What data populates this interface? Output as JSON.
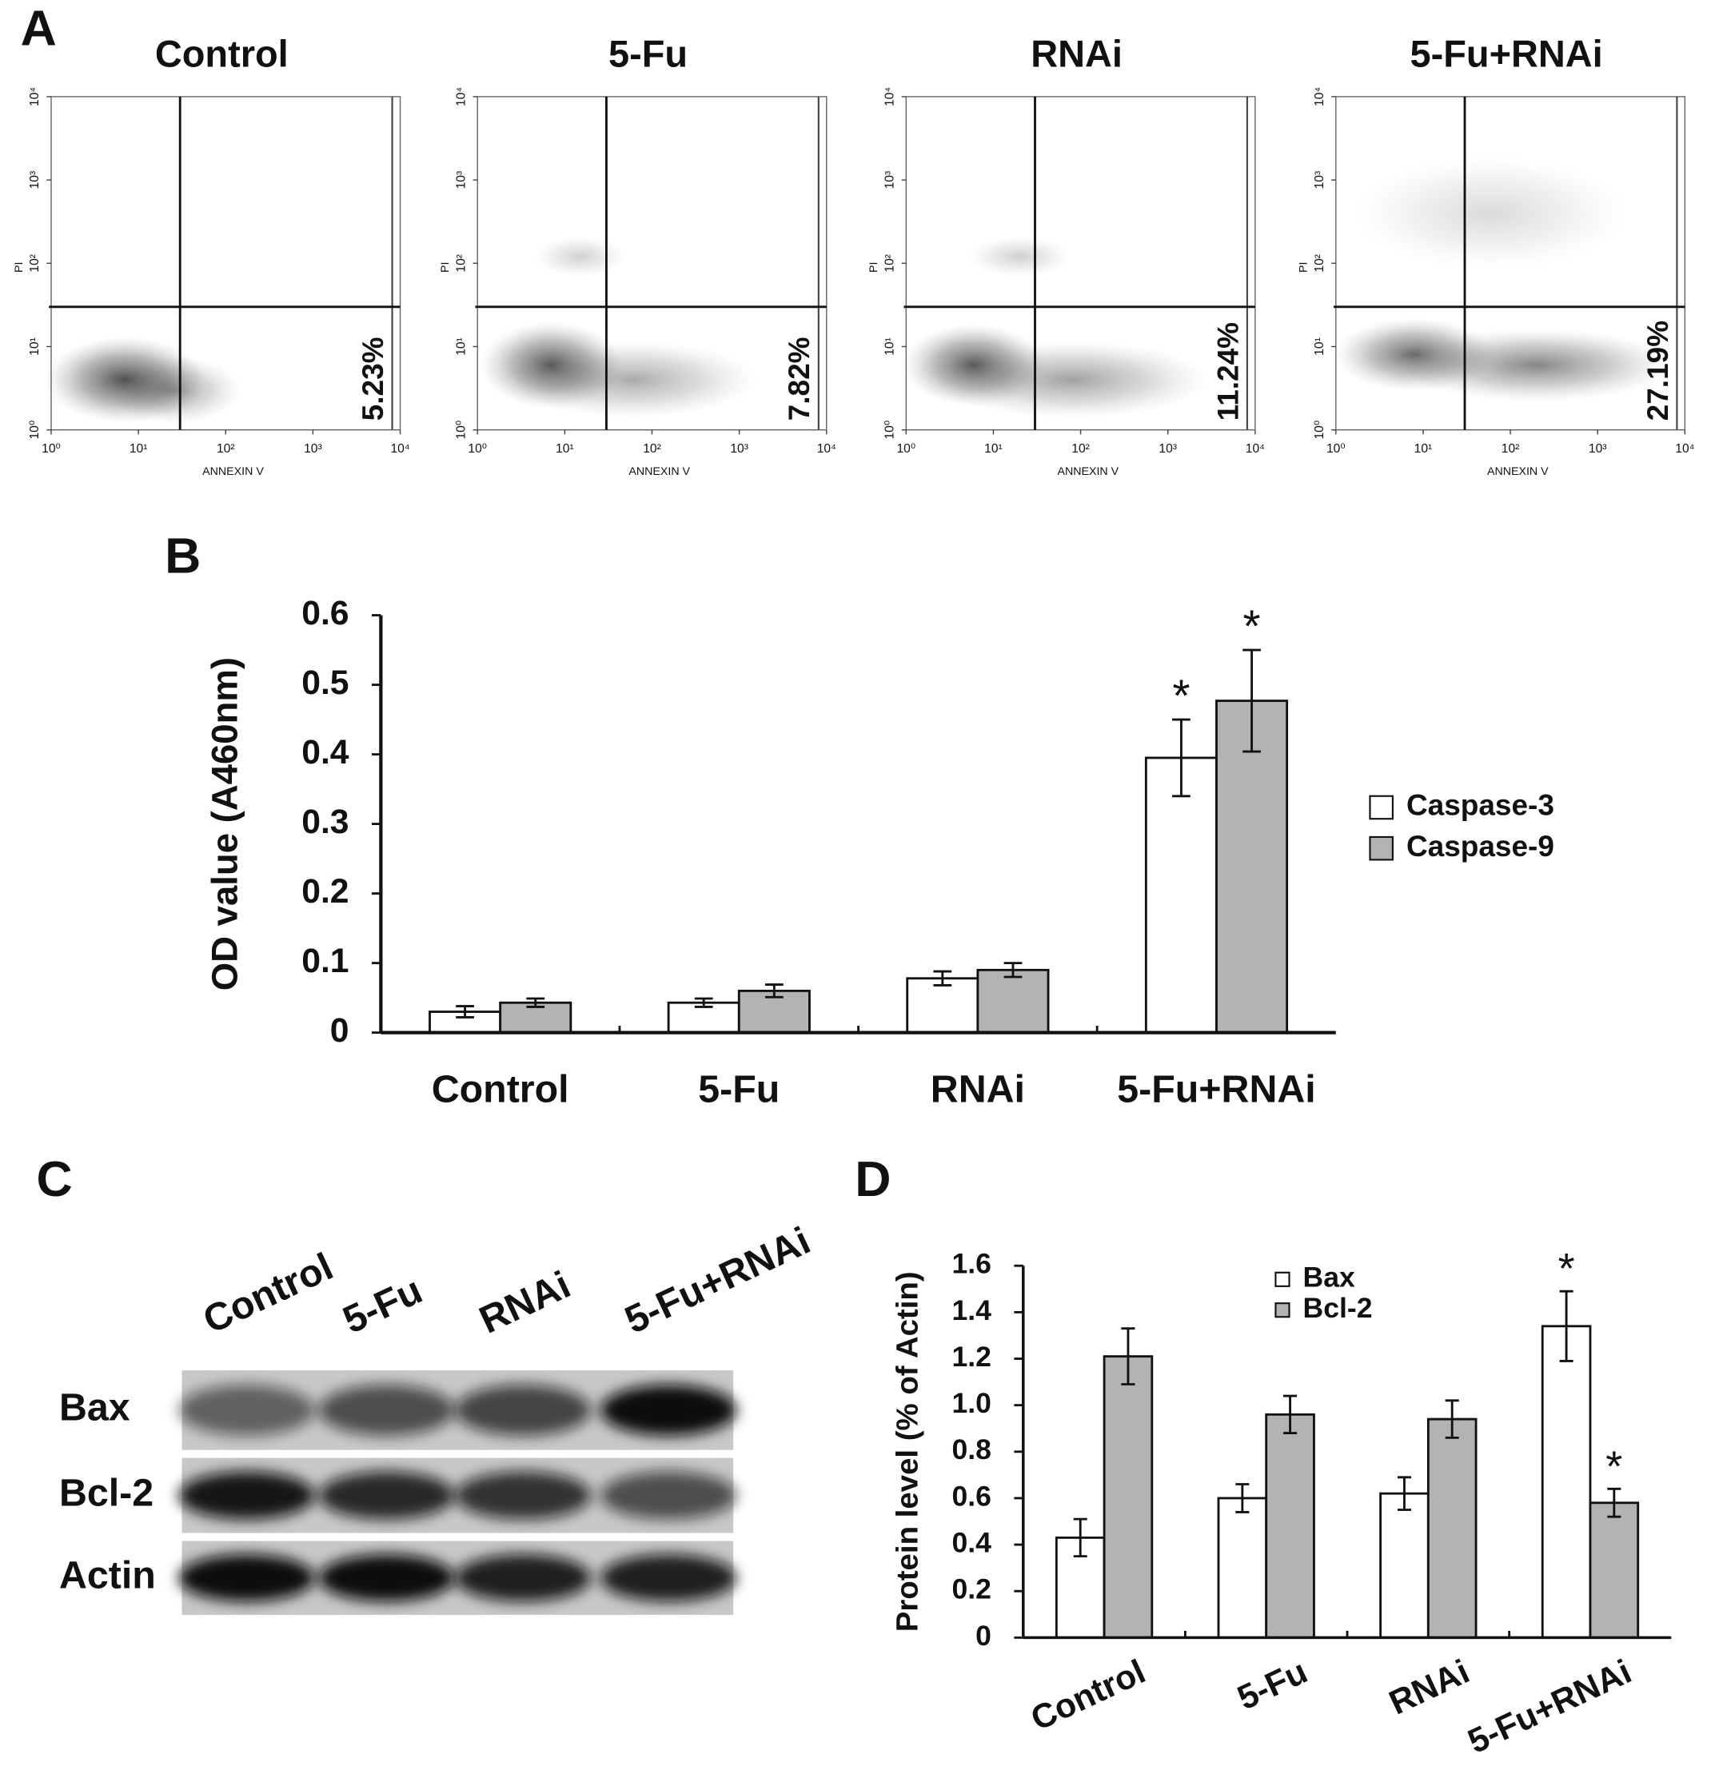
{
  "panel_labels": [
    "A",
    "B",
    "C",
    "D"
  ],
  "chart_data": [
    {
      "type": "quadrant-plot",
      "title": "Control",
      "xlabel": "ANNEXIN V",
      "ylabel": "PI",
      "log_scale": true,
      "xlim": [
        1,
        10000
      ],
      "ylim": [
        1,
        10000
      ],
      "xticks": [
        {
          "value": 1,
          "label": "10⁰"
        },
        {
          "value": 10,
          "label": "10¹"
        },
        {
          "value": 100,
          "label": "10²"
        },
        {
          "value": 1000,
          "label": "10³"
        },
        {
          "value": 10000,
          "label": "10⁴"
        }
      ],
      "yticks": [
        {
          "value": 1,
          "label": "10⁰"
        },
        {
          "value": 10,
          "label": "10¹"
        },
        {
          "value": 100,
          "label": "10²"
        },
        {
          "value": 1000,
          "label": "10³"
        },
        {
          "value": 10000,
          "label": "10⁴"
        }
      ],
      "gates": {
        "x": 30,
        "y": 30
      },
      "annotation": "5.23%"
    },
    {
      "type": "quadrant-plot",
      "title": "5-Fu",
      "xlabel": "ANNEXIN V",
      "ylabel": "PI",
      "log_scale": true,
      "xlim": [
        1,
        10000
      ],
      "ylim": [
        1,
        10000
      ],
      "xticks": [
        {
          "value": 1,
          "label": "10⁰"
        },
        {
          "value": 10,
          "label": "10¹"
        },
        {
          "value": 100,
          "label": "10²"
        },
        {
          "value": 1000,
          "label": "10³"
        },
        {
          "value": 10000,
          "label": "10⁴"
        }
      ],
      "yticks": [
        {
          "value": 1,
          "label": "10⁰"
        },
        {
          "value": 10,
          "label": "10¹"
        },
        {
          "value": 100,
          "label": "10²"
        },
        {
          "value": 1000,
          "label": "10³"
        },
        {
          "value": 10000,
          "label": "10⁴"
        }
      ],
      "gates": {
        "x": 30,
        "y": 30
      },
      "annotation": "7.82%"
    },
    {
      "type": "quadrant-plot",
      "title": "RNAi",
      "xlabel": "ANNEXIN V",
      "ylabel": "PI",
      "log_scale": true,
      "xlim": [
        1,
        10000
      ],
      "ylim": [
        1,
        10000
      ],
      "xticks": [
        {
          "value": 1,
          "label": "10⁰"
        },
        {
          "value": 10,
          "label": "10¹"
        },
        {
          "value": 100,
          "label": "10²"
        },
        {
          "value": 1000,
          "label": "10³"
        },
        {
          "value": 10000,
          "label": "10⁴"
        }
      ],
      "yticks": [
        {
          "value": 1,
          "label": "10⁰"
        },
        {
          "value": 10,
          "label": "10¹"
        },
        {
          "value": 100,
          "label": "10²"
        },
        {
          "value": 1000,
          "label": "10³"
        },
        {
          "value": 10000,
          "label": "10⁴"
        }
      ],
      "gates": {
        "x": 30,
        "y": 30
      },
      "annotation": "11.24%"
    },
    {
      "type": "quadrant-plot",
      "title": "5-Fu+RNAi",
      "xlabel": "ANNEXIN V",
      "ylabel": "PI",
      "log_scale": true,
      "xlim": [
        1,
        10000
      ],
      "ylim": [
        1,
        10000
      ],
      "xticks": [
        {
          "value": 1,
          "label": "10⁰"
        },
        {
          "value": 10,
          "label": "10¹"
        },
        {
          "value": 100,
          "label": "10²"
        },
        {
          "value": 1000,
          "label": "10³"
        },
        {
          "value": 10000,
          "label": "10⁴"
        }
      ],
      "yticks": [
        {
          "value": 1,
          "label": "10⁰"
        },
        {
          "value": 10,
          "label": "10¹"
        },
        {
          "value": 100,
          "label": "10²"
        },
        {
          "value": 1000,
          "label": "10³"
        },
        {
          "value": 10000,
          "label": "10⁴"
        }
      ],
      "gates": {
        "x": 30,
        "y": 30
      },
      "annotation": "27.19%"
    },
    {
      "type": "bar",
      "ylabel": "OD value (A460nm)",
      "categories": [
        "Control",
        "5-Fu",
        "RNAi",
        "5-Fu+RNAi"
      ],
      "series": [
        {
          "name": "Caspase-3",
          "color": "#ffffff",
          "values": [
            0.03,
            0.043,
            0.078,
            0.395
          ],
          "errors": [
            0.008,
            0.006,
            0.01,
            0.055
          ],
          "markers": [
            null,
            null,
            null,
            "*"
          ]
        },
        {
          "name": "Caspase-9",
          "color": "#b3b3b3",
          "values": [
            0.043,
            0.06,
            0.09,
            0.477
          ],
          "errors": [
            0.006,
            0.009,
            0.01,
            0.073
          ],
          "markers": [
            null,
            null,
            null,
            "*"
          ]
        }
      ],
      "ylim": [
        0,
        0.6
      ],
      "yticks": [
        0,
        0.1,
        0.2,
        0.3,
        0.4,
        0.5,
        0.6
      ],
      "legend": "right",
      "xtick_rotation": 0
    },
    {
      "type": "bar",
      "ylabel": "Protein level (% of Actin)",
      "categories": [
        "Control",
        "5-Fu",
        "RNAi",
        "5-Fu+RNAi"
      ],
      "series": [
        {
          "name": "Bax",
          "color": "#ffffff",
          "values": [
            0.43,
            0.6,
            0.62,
            1.34
          ],
          "errors": [
            0.08,
            0.06,
            0.07,
            0.15
          ],
          "markers": [
            null,
            null,
            null,
            "*"
          ]
        },
        {
          "name": "Bcl-2",
          "color": "#b3b3b3",
          "values": [
            1.21,
            0.96,
            0.94,
            0.58
          ],
          "errors": [
            0.12,
            0.08,
            0.08,
            0.06
          ],
          "markers": [
            null,
            null,
            null,
            "*"
          ]
        }
      ],
      "ylim": [
        0,
        1.6
      ],
      "yticks": [
        0,
        0.2,
        0.4,
        0.6,
        0.8,
        {
          "value": 1,
          "label": "1.0"
        },
        1.2,
        1.4,
        1.6
      ],
      "legend": "top",
      "xtick_rotation": -25
    }
  ],
  "blot": {
    "lanes": [
      "Control",
      "5-Fu",
      "RNAi",
      "5-Fu+RNAi"
    ],
    "rows": [
      "Bax",
      "Bcl-2",
      "Actin"
    ]
  }
}
